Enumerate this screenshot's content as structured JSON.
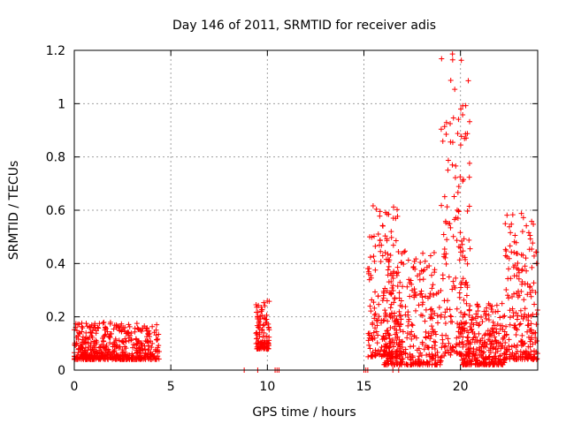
{
  "chart_data": {
    "type": "scatter",
    "title": "Day 146 of 2011, SRMTID for receiver adis",
    "xlabel": "GPS time / hours",
    "ylabel": "SRMTID / TECUs",
    "xlim": [
      0,
      24
    ],
    "ylim": [
      0,
      1.2
    ],
    "x_ticks": [
      0,
      5,
      10,
      15,
      20
    ],
    "y_ticks": [
      0,
      0.2,
      0.4,
      0.6,
      0.8,
      1,
      1.2
    ],
    "x_tick_labels": [
      "0",
      "5",
      "10",
      "15",
      "20"
    ],
    "y_tick_labels": [
      "0",
      "0.2",
      "0.4",
      "0.6",
      "0.8",
      "1",
      "1.2"
    ],
    "grid": true,
    "marker": "plus",
    "color": "#ff0000",
    "clusters": [
      {
        "x_range": [
          0.0,
          4.4
        ],
        "y_min": 0.04,
        "y_max": 0.18,
        "count": 520
      },
      {
        "x_range": [
          9.4,
          10.1
        ],
        "y_min": 0.08,
        "y_max": 0.26,
        "count": 110
      },
      {
        "x_range": [
          15.2,
          17.0
        ],
        "y_min": 0.05,
        "y_max": 0.62,
        "count": 200
      },
      {
        "x_range": [
          16.0,
          19.0
        ],
        "y_min": 0.02,
        "y_max": 0.45,
        "count": 320
      },
      {
        "x_range": [
          19.0,
          20.5
        ],
        "y_min": 0.05,
        "y_max": 1.19,
        "count": 180
      },
      {
        "x_range": [
          20.0,
          22.3
        ],
        "y_min": 0.02,
        "y_max": 0.25,
        "count": 300
      },
      {
        "x_range": [
          22.3,
          24.0
        ],
        "y_min": 0.04,
        "y_max": 0.6,
        "count": 220
      }
    ],
    "zero_points_x": [
      8.8,
      9.5,
      10.4,
      10.5,
      10.6,
      15.0,
      15.1,
      15.2,
      16.5,
      16.8
    ]
  }
}
